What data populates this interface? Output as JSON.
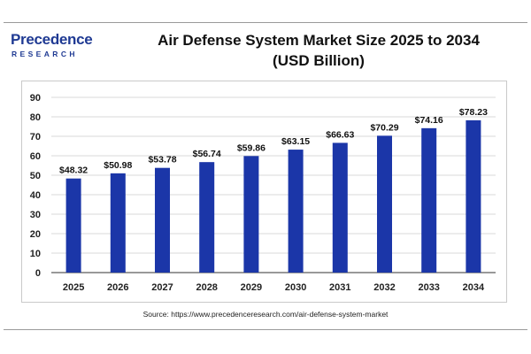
{
  "logo": {
    "name": "Precedence",
    "sub": "RESEARCH"
  },
  "title_line1": "Air Defense System Market Size 2025 to 2034",
  "title_line2": "(USD Billion)",
  "source_text": "Source: https://www.precedenceresearch.com/air-defense-system-market",
  "colors": {
    "bar": "#1b36a8",
    "brand": "#1f3a93",
    "grid": "#d9d9d9",
    "axis": "#333333"
  },
  "chart_data": {
    "type": "bar",
    "title": "Air Defense System Market Size 2025 to 2034 (USD Billion)",
    "xlabel": "",
    "ylabel": "",
    "categories": [
      "2025",
      "2026",
      "2027",
      "2028",
      "2029",
      "2030",
      "2031",
      "2032",
      "2033",
      "2034"
    ],
    "values": [
      48.32,
      50.98,
      53.78,
      56.74,
      59.86,
      63.15,
      66.63,
      70.29,
      74.16,
      78.23
    ],
    "data_labels": [
      "$48.32",
      "$50.98",
      "$53.78",
      "$56.74",
      "$59.86",
      "$63.15",
      "$66.63",
      "$70.29",
      "$74.16",
      "$78.23"
    ],
    "ylim": [
      0,
      90
    ],
    "yticks": [
      0,
      10,
      20,
      30,
      40,
      50,
      60,
      70,
      80,
      90
    ],
    "grid": true,
    "legend": "none"
  }
}
